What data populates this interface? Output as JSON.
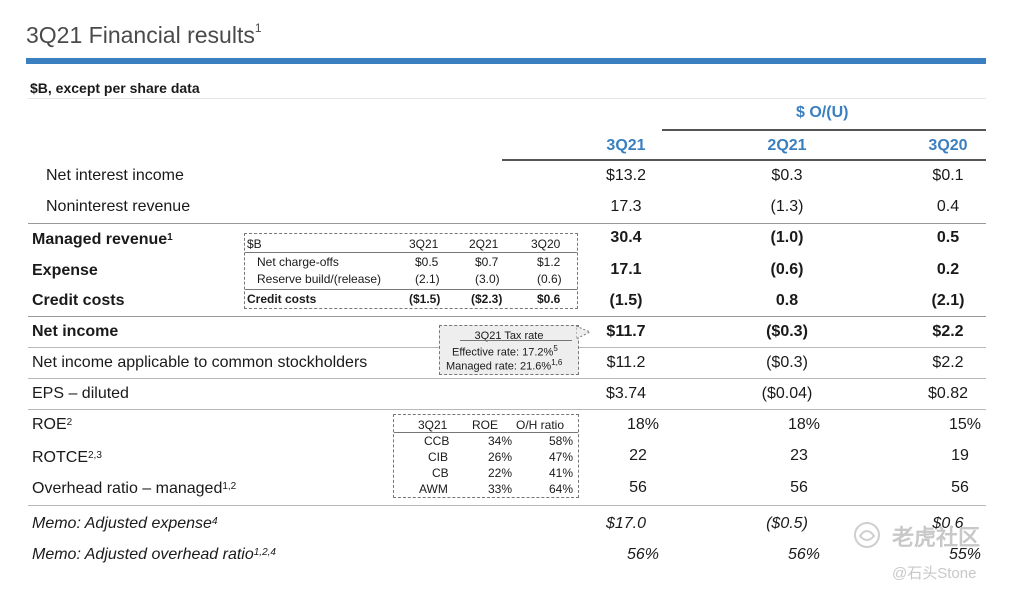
{
  "title": "3Q21 Financial results",
  "title_sup": "1",
  "subtitle": "$B, except per share data",
  "group_header": "$ O/(U)",
  "columns": [
    "3Q21",
    "2Q21",
    "3Q20"
  ],
  "rows": [
    {
      "label": "Net interest income",
      "sup": "",
      "values": [
        "$13.2",
        "$0.3",
        "$0.1"
      ]
    },
    {
      "label": "Noninterest revenue",
      "sup": "",
      "values": [
        "17.3",
        "(1.3)",
        "0.4"
      ]
    },
    {
      "label": "Managed revenue",
      "sup": "1",
      "values": [
        "30.4",
        "(1.0)",
        "0.5"
      ]
    },
    {
      "label": "Expense",
      "sup": "",
      "values": [
        "17.1",
        "(0.6)",
        "0.2"
      ]
    },
    {
      "label": "Credit costs",
      "sup": "",
      "values": [
        "(1.5)",
        "0.8",
        "(2.1)"
      ]
    },
    {
      "label": "Net income",
      "sup": "",
      "values": [
        "$11.7",
        "($0.3)",
        "$2.2"
      ]
    },
    {
      "label": "Net income applicable to common stockholders",
      "sup": "",
      "values": [
        "$11.2",
        "($0.3)",
        "$2.2"
      ]
    },
    {
      "label": "EPS – diluted",
      "sup": "",
      "values": [
        "$3.74",
        "($0.04)",
        "$0.82"
      ]
    },
    {
      "label": "ROE",
      "sup": "2",
      "values": [
        "18%",
        "18%",
        "15%"
      ]
    },
    {
      "label": "ROTCE",
      "sup": "2,3",
      "values": [
        "22",
        "23",
        "19"
      ]
    },
    {
      "label": "Overhead ratio – managed",
      "sup": "1,2",
      "values": [
        "56",
        "56",
        "56"
      ]
    },
    {
      "label": "Memo: Adjusted expense",
      "sup": "4",
      "values": [
        "$17.0",
        "($0.5)",
        "$0.6"
      ]
    },
    {
      "label": "Memo: Adjusted overhead ratio",
      "sup": "1,2,4",
      "values": [
        "56%",
        "56%",
        "55%"
      ]
    }
  ],
  "credit_box": {
    "header": [
      "$B",
      "3Q21",
      "2Q21",
      "3Q20"
    ],
    "rows": [
      [
        "Net charge-offs",
        "$0.5",
        "$0.7",
        "$1.2"
      ],
      [
        "Reserve build/(release)",
        "(2.1)",
        "(3.0)",
        "(0.6)"
      ],
      [
        "Credit costs",
        "($1.5)",
        "($2.3)",
        "$0.6"
      ]
    ]
  },
  "tax_box": {
    "title": "3Q21 Tax rate",
    "effective": "Effective rate: 17.2%",
    "effective_sup": "5",
    "managed": "Managed rate: 21.6%",
    "managed_sup": "1,6"
  },
  "lob_box": {
    "header": [
      "3Q21",
      "ROE",
      "O/H ratio"
    ],
    "rows": [
      [
        "CCB",
        "34%",
        "58%"
      ],
      [
        "CIB",
        "26%",
        "47%"
      ],
      [
        "CB",
        "22%",
        "41%"
      ],
      [
        "AWM",
        "33%",
        "64%"
      ]
    ]
  },
  "watermark": {
    "line1": "老虎社区",
    "line2": "@石头Stone"
  }
}
